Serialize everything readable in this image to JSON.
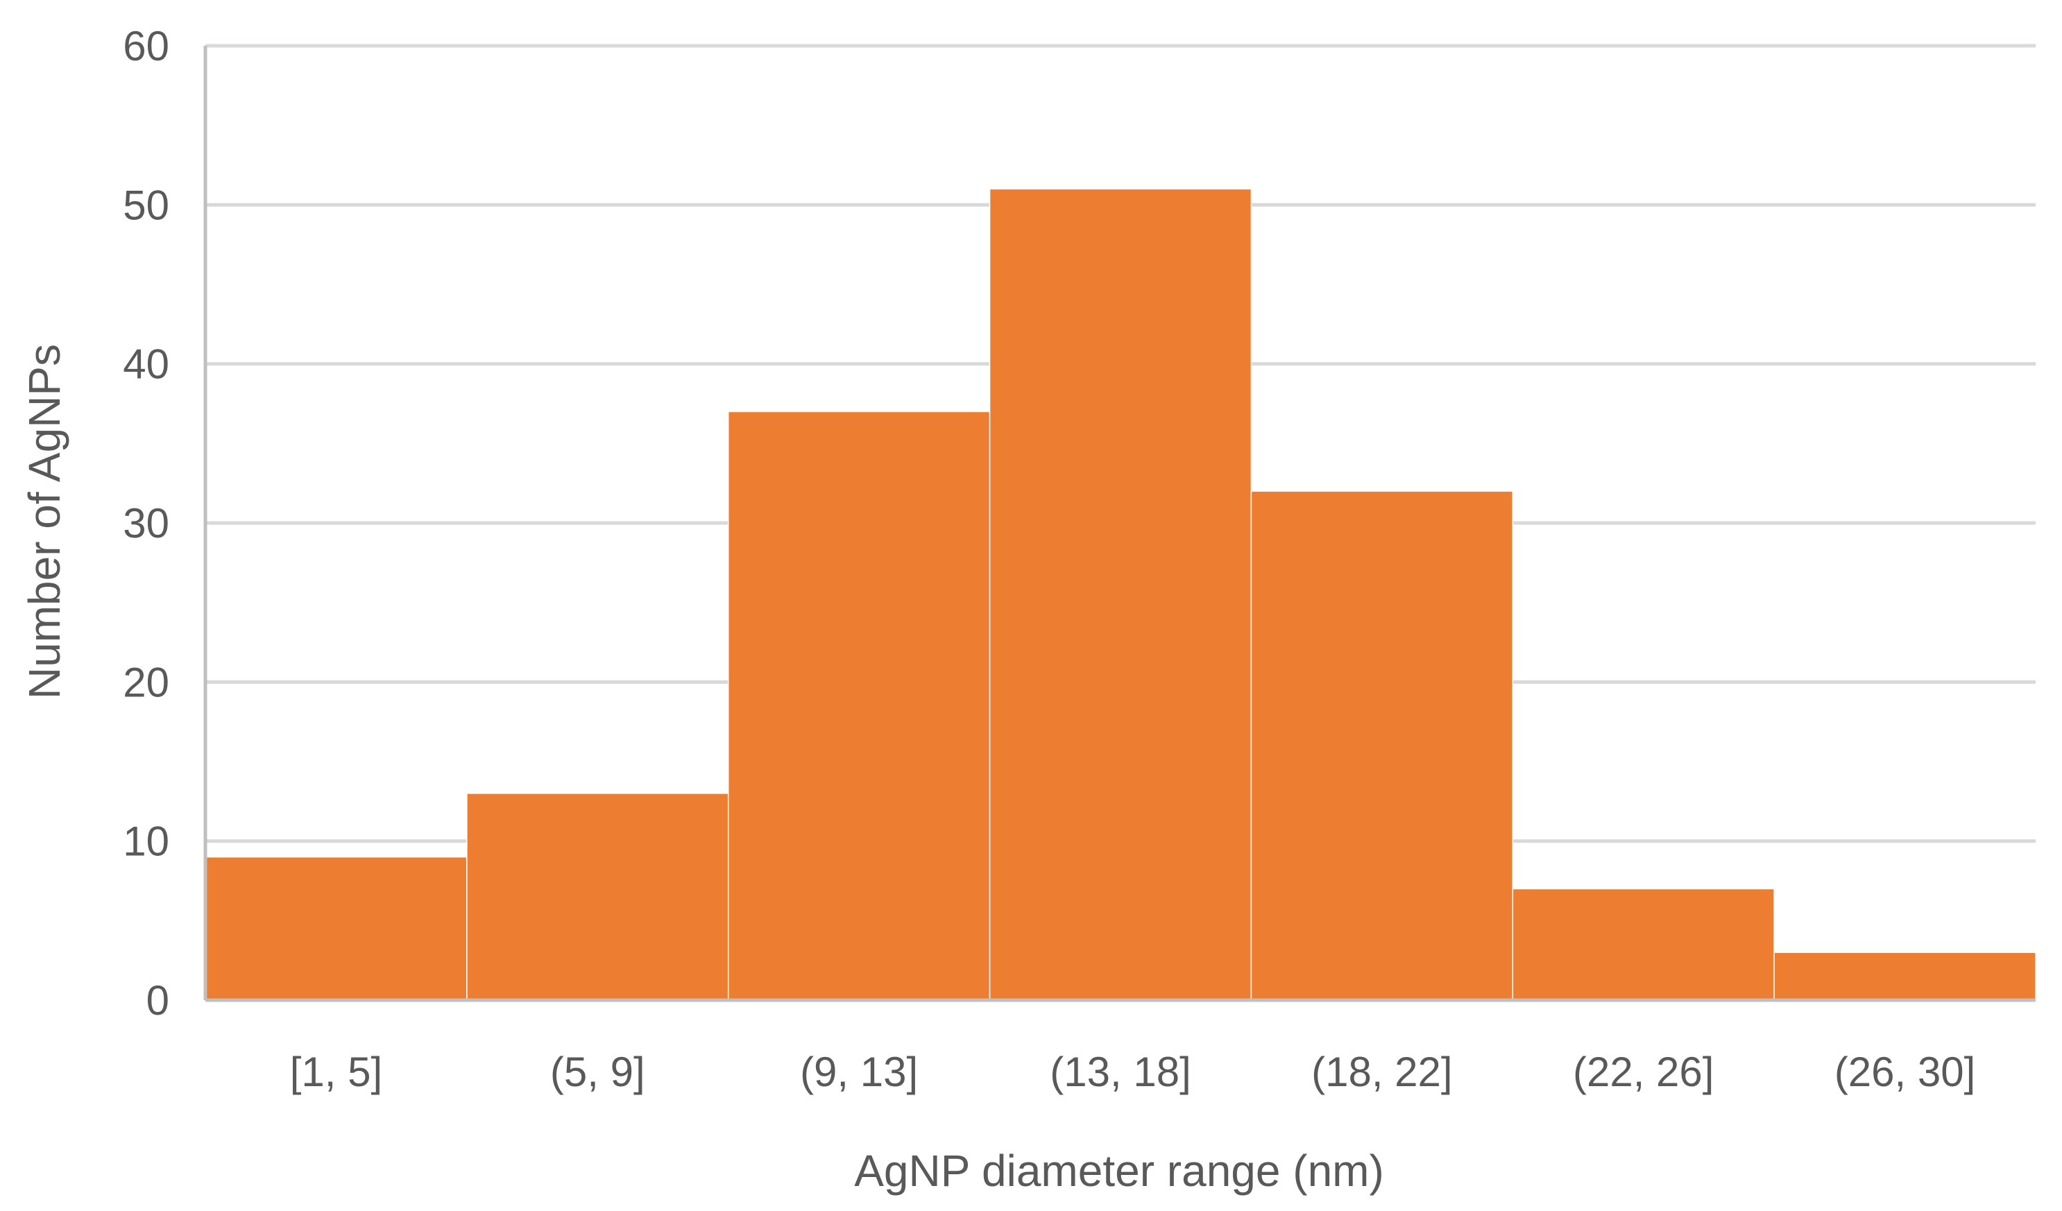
{
  "chart_data": {
    "type": "bar",
    "title": "",
    "xlabel": "AgNP diameter range (nm)",
    "ylabel": "Number of AgNPs",
    "categories": [
      "[1, 5]",
      "(5, 9]",
      "(9, 13]",
      "(13, 18]",
      "(18, 22]",
      "(22, 26]",
      "(26, 30]"
    ],
    "values": [
      9,
      13,
      37,
      51,
      32,
      7,
      3
    ],
    "ylim": [
      0,
      60
    ],
    "yticks": [
      0,
      10,
      20,
      30,
      40,
      50,
      60
    ],
    "grid": true,
    "legend": "none",
    "bar_gap": 0,
    "colors": {
      "bar": "#ed7d31",
      "gridline": "#d9d9d9",
      "axis": "#bfbfbf",
      "text": "#595959"
    }
  }
}
